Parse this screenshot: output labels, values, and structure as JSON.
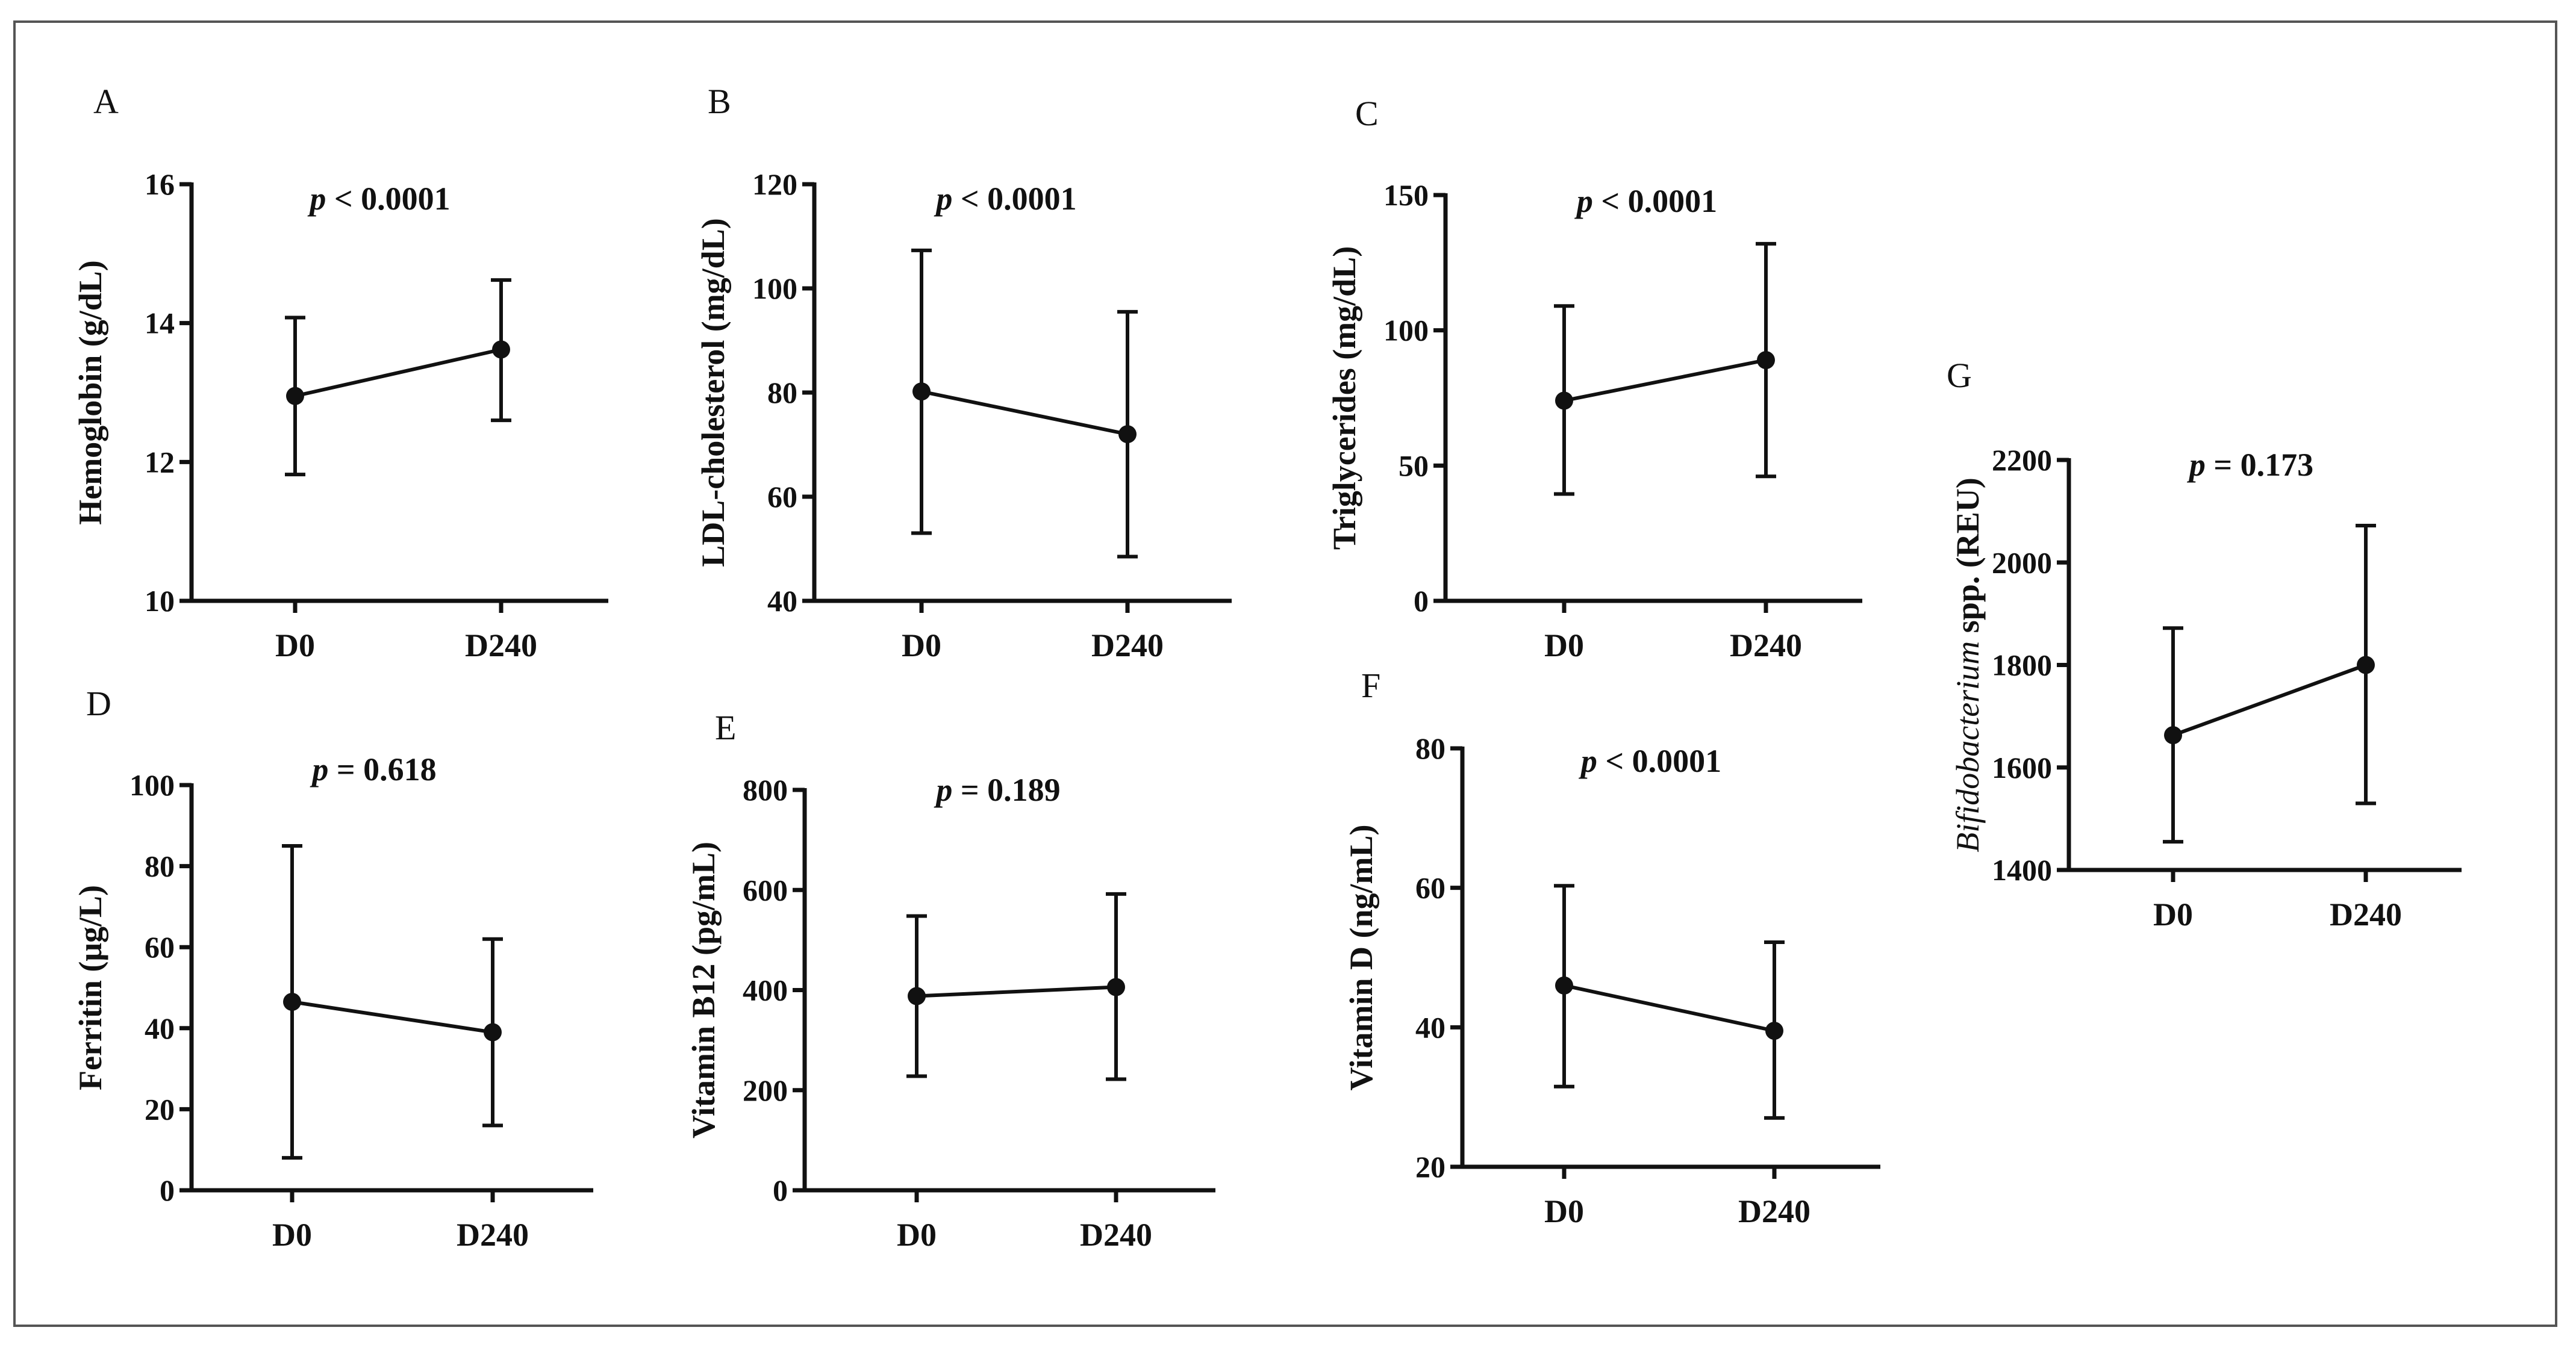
{
  "chart_data": [
    {
      "id": "A",
      "panel_label": "A",
      "type": "line",
      "categories": [
        "D0",
        "D240"
      ],
      "values": [
        12.95,
        13.62
      ],
      "err_low": [
        11.82,
        12.6
      ],
      "err_high": [
        14.08,
        14.62
      ],
      "ylabel": "Hemoglobin (g/dL)",
      "ylim": [
        10,
        16
      ],
      "yticks": [
        10,
        12,
        14,
        16
      ],
      "p_prefix": "p",
      "p_text": " < 0.0001"
    },
    {
      "id": "B",
      "panel_label": "B",
      "type": "line",
      "categories": [
        "D0",
        "D240"
      ],
      "values": [
        80.2,
        72.0
      ],
      "err_low": [
        53.0,
        48.5
      ],
      "err_high": [
        107.3,
        95.5
      ],
      "ylabel": "LDL-cholesterol (mg/dL)",
      "ylim": [
        40,
        120
      ],
      "yticks": [
        40,
        60,
        80,
        100,
        120
      ],
      "p_prefix": "p",
      "p_text": " < 0.0001"
    },
    {
      "id": "C",
      "panel_label": "C",
      "type": "line",
      "categories": [
        "D0",
        "D240"
      ],
      "values": [
        74.0,
        89.0
      ],
      "err_low": [
        39.5,
        46.0
      ],
      "err_high": [
        109.0,
        132.0
      ],
      "ylabel": "Triglycerides (mg/dL)",
      "ylim": [
        0,
        150
      ],
      "yticks": [
        0,
        50,
        100,
        150
      ],
      "p_prefix": "p",
      "p_text": " < 0.0001"
    },
    {
      "id": "D",
      "panel_label": "D",
      "type": "line",
      "categories": [
        "D0",
        "D240"
      ],
      "values": [
        46.5,
        39.0
      ],
      "err_low": [
        8.0,
        16.0
      ],
      "err_high": [
        85.0,
        62.0
      ],
      "ylabel": "Ferritin (μg/L)",
      "ylim": [
        0,
        100
      ],
      "yticks": [
        0,
        20,
        40,
        60,
        80,
        100
      ],
      "p_prefix": "p",
      "p_text": " = 0.618"
    },
    {
      "id": "E",
      "panel_label": "E",
      "type": "line",
      "categories": [
        "D0",
        "D240"
      ],
      "values": [
        388,
        406
      ],
      "err_low": [
        228,
        222
      ],
      "err_high": [
        548,
        592
      ],
      "ylabel": "Vitamin B12 (pg/mL)",
      "ylim": [
        0,
        800
      ],
      "yticks": [
        0,
        200,
        400,
        600,
        800
      ],
      "p_prefix": "p",
      "p_text": " = 0.189"
    },
    {
      "id": "F",
      "panel_label": "F",
      "type": "line",
      "categories": [
        "D0",
        "D240"
      ],
      "values": [
        46.0,
        39.5
      ],
      "err_low": [
        31.5,
        27.0
      ],
      "err_high": [
        60.3,
        52.2
      ],
      "ylabel": "Vitamin D (ng/mL)",
      "ylim": [
        20,
        80
      ],
      "yticks": [
        20,
        40,
        60,
        80
      ],
      "p_prefix": "p",
      "p_text": " < 0.0001"
    },
    {
      "id": "G",
      "panel_label": "G",
      "type": "line",
      "categories": [
        "D0",
        "D240"
      ],
      "values": [
        1663,
        1800
      ],
      "err_low": [
        1455,
        1530
      ],
      "err_high": [
        1872,
        2072
      ],
      "ylabel_italic": "Bifidobacterium",
      "ylabel": " spp. (REU)",
      "ylim": [
        1400,
        2200
      ],
      "yticks": [
        1400,
        1600,
        1800,
        2000,
        2200
      ],
      "p_prefix": "p",
      "p_text": " = 0.173"
    }
  ],
  "colors": {
    "ink": "#111111",
    "frame": "#555555",
    "background": "#ffffff"
  }
}
